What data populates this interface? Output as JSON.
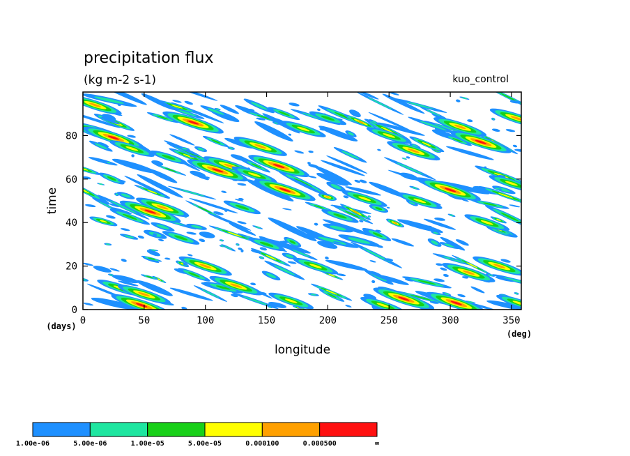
{
  "chart_data": {
    "type": "heatmap",
    "title": "precipitation flux",
    "subtitle": "(kg m-2 s-1)",
    "run_label": "kuo_control",
    "xlabel": "longitude",
    "ylabel": "time",
    "x_unit": "(deg)",
    "y_unit": "(days)",
    "xlim": [
      0,
      358
    ],
    "ylim": [
      0,
      100
    ],
    "x_ticks": [
      "0",
      "50",
      "100",
      "150",
      "200",
      "250",
      "300",
      "350"
    ],
    "y_ticks": [
      "0",
      "20",
      "40",
      "60",
      "80"
    ],
    "grid": false,
    "legend_position": "bottom-left",
    "colorbar": {
      "labels": [
        "1.00e-06",
        "5.00e-06",
        "1.00e-05",
        "5.00e-05",
        "0.000100",
        "0.000500",
        "∞"
      ],
      "colors": [
        "#1e90ff",
        "#1ee6a0",
        "#18d018",
        "#ffff00",
        "#ffa000",
        "#ff1010"
      ]
    },
    "features": [
      {
        "lon": 10,
        "day": 94,
        "level": 4
      },
      {
        "lon": 15,
        "day": 81,
        "level": 5
      },
      {
        "lon": 25,
        "day": 79,
        "level": 5
      },
      {
        "lon": 40,
        "day": 74,
        "level": 3
      },
      {
        "lon": 30,
        "day": 10,
        "level": 3
      },
      {
        "lon": 50,
        "day": 7,
        "level": 4
      },
      {
        "lon": 48,
        "day": 2,
        "level": 5
      },
      {
        "lon": 55,
        "day": 45,
        "level": 5
      },
      {
        "lon": 65,
        "day": 47,
        "level": 4
      },
      {
        "lon": 70,
        "day": 70,
        "level": 2
      },
      {
        "lon": 80,
        "day": 33,
        "level": 2
      },
      {
        "lon": 90,
        "day": 86,
        "level": 5
      },
      {
        "lon": 100,
        "day": 20,
        "level": 4
      },
      {
        "lon": 110,
        "day": 64,
        "level": 5
      },
      {
        "lon": 120,
        "day": 66,
        "level": 4
      },
      {
        "lon": 125,
        "day": 11,
        "level": 4
      },
      {
        "lon": 130,
        "day": 47,
        "level": 2
      },
      {
        "lon": 140,
        "day": 62,
        "level": 3
      },
      {
        "lon": 145,
        "day": 75,
        "level": 4
      },
      {
        "lon": 150,
        "day": 30,
        "level": 2
      },
      {
        "lon": 160,
        "day": 66,
        "level": 5
      },
      {
        "lon": 165,
        "day": 55,
        "level": 5
      },
      {
        "lon": 170,
        "day": 4,
        "level": 3
      },
      {
        "lon": 180,
        "day": 83,
        "level": 3
      },
      {
        "lon": 190,
        "day": 20,
        "level": 3
      },
      {
        "lon": 200,
        "day": 88,
        "level": 2
      },
      {
        "lon": 210,
        "day": 43,
        "level": 2
      },
      {
        "lon": 230,
        "day": 51,
        "level": 3
      },
      {
        "lon": 245,
        "day": 2,
        "level": 3
      },
      {
        "lon": 250,
        "day": 80,
        "level": 3
      },
      {
        "lon": 262,
        "day": 5,
        "level": 5
      },
      {
        "lon": 270,
        "day": 73,
        "level": 4
      },
      {
        "lon": 275,
        "day": 50,
        "level": 3
      },
      {
        "lon": 290,
        "day": 57,
        "level": 3
      },
      {
        "lon": 300,
        "day": 55,
        "level": 5
      },
      {
        "lon": 305,
        "day": 3,
        "level": 5
      },
      {
        "lon": 308,
        "day": 84,
        "level": 4
      },
      {
        "lon": 315,
        "day": 17,
        "level": 4
      },
      {
        "lon": 325,
        "day": 77,
        "level": 5
      },
      {
        "lon": 330,
        "day": 40,
        "level": 3
      },
      {
        "lon": 340,
        "day": 20,
        "level": 4
      },
      {
        "lon": 350,
        "day": 58,
        "level": 3
      },
      {
        "lon": 354,
        "day": 88,
        "level": 4
      },
      {
        "lon": 356,
        "day": 3,
        "level": 3
      }
    ]
  }
}
